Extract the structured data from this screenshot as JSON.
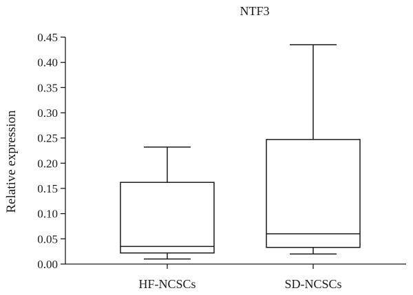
{
  "chart_data": {
    "type": "box",
    "title": "NTF3",
    "xlabel": "",
    "ylabel": "Relative expression",
    "ylim": [
      0,
      0.45
    ],
    "yticks": [
      "0.00",
      "0.05",
      "0.10",
      "0.15",
      "0.20",
      "0.25",
      "0.30",
      "0.35",
      "0.40",
      "0.45"
    ],
    "categories": [
      "HF-NCSCs",
      "SD-NCSCs"
    ],
    "boxes": [
      {
        "category": "HF-NCSCs",
        "min": 0.01,
        "q1": 0.022,
        "median": 0.035,
        "q3": 0.162,
        "max": 0.232
      },
      {
        "category": "SD-NCSCs",
        "min": 0.02,
        "q1": 0.033,
        "median": 0.06,
        "q3": 0.247,
        "max": 0.435
      }
    ],
    "grid": false,
    "legend": "none"
  }
}
